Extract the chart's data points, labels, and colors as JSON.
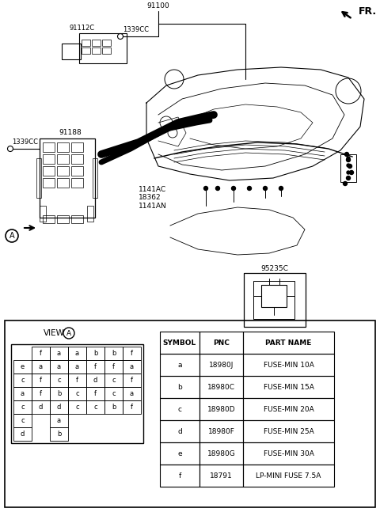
{
  "bg_color": "#ffffff",
  "fr_label": "FR.",
  "label_91100": "91100",
  "label_91112C": "91112C",
  "label_1339CC_top": "1339CC",
  "label_91188": "91188",
  "label_1339CC_left": "1339CC",
  "label_center": "1141AC\n18362\n1141AN",
  "label_relay": "95235C",
  "label_view": "VIEW",
  "label_a": "A",
  "table_headers": [
    "SYMBOL",
    "PNC",
    "PART NAME"
  ],
  "table_data": [
    [
      "a",
      "18980J",
      "FUSE-MIN 10A"
    ],
    [
      "b",
      "18980C",
      "FUSE-MIN 15A"
    ],
    [
      "c",
      "18980D",
      "FUSE-MIN 20A"
    ],
    [
      "d",
      "18980F",
      "FUSE-MIN 25A"
    ],
    [
      "e",
      "18980G",
      "FUSE-MIN 30A"
    ],
    [
      "f",
      "18791",
      "LP-MINI FUSE 7.5A"
    ]
  ],
  "fuse_grid": [
    [
      " ",
      "f",
      "a",
      "a",
      "b",
      "b",
      "f"
    ],
    [
      "e",
      "a",
      "a",
      "a",
      "f",
      "f",
      "a"
    ],
    [
      "c",
      "f",
      "c",
      "f",
      "d",
      "c",
      "f"
    ],
    [
      "a",
      "f",
      "b",
      "c",
      "f",
      "c",
      "a"
    ],
    [
      "c",
      "d",
      "d",
      "c",
      "c",
      "b",
      "f"
    ],
    [
      "c",
      " ",
      "a",
      " ",
      " ",
      " ",
      " "
    ],
    [
      "d",
      " ",
      "b",
      " ",
      " ",
      " ",
      " "
    ]
  ],
  "figw": 4.8,
  "figh": 6.47,
  "dpi": 100
}
